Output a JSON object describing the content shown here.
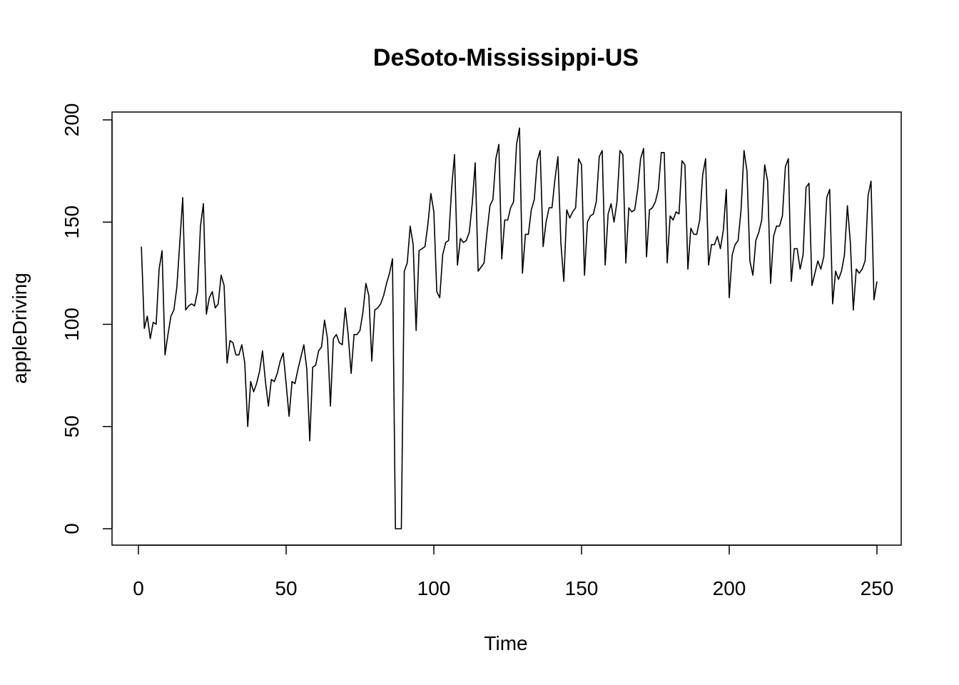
{
  "chart_data": {
    "type": "line",
    "title": "DeSoto-Mississippi-US",
    "xlabel": "Time",
    "ylabel": "appleDriving",
    "xlim": [
      1,
      248
    ],
    "ylim": [
      0,
      196
    ],
    "x_ticks": [
      0,
      50,
      100,
      150,
      200,
      250
    ],
    "x_tick_labels": [
      "0",
      "50",
      "100",
      "150",
      "200",
      "250"
    ],
    "y_ticks": [
      0,
      50,
      100,
      150,
      200
    ],
    "y_tick_labels": [
      "0",
      "50",
      "100",
      "150",
      "200"
    ],
    "grid": false,
    "legend": "none",
    "color": "#000000",
    "series": [
      {
        "x_start": 1,
        "values": [
          138,
          98,
          104,
          93,
          101,
          100,
          127,
          136,
          85,
          95,
          104,
          107,
          118,
          140,
          162,
          107,
          109,
          110,
          109,
          116,
          148,
          159,
          105,
          113,
          116,
          108,
          110,
          124,
          119,
          81,
          92,
          91,
          85,
          85,
          90,
          81,
          50,
          72,
          67,
          71,
          77,
          87,
          72,
          60,
          73,
          72,
          76,
          82,
          86,
          71,
          55,
          72,
          71,
          78,
          84,
          90,
          78,
          43,
          79,
          80,
          87,
          89,
          102,
          93,
          60,
          93,
          95,
          91,
          90,
          108,
          95,
          76,
          95,
          95,
          97,
          106,
          120,
          114,
          82,
          107,
          108,
          110,
          114,
          120,
          125,
          132,
          0,
          0,
          0,
          126,
          130,
          148,
          139,
          97,
          136,
          137,
          138,
          149,
          164,
          155,
          116,
          113,
          134,
          140,
          141,
          166,
          183,
          129,
          142,
          140,
          141,
          145,
          159,
          179,
          126,
          128,
          130,
          145,
          158,
          161,
          181,
          188,
          132,
          151,
          151,
          157,
          160,
          188,
          196,
          125,
          144,
          144,
          156,
          161,
          180,
          185,
          138,
          150,
          157,
          157,
          171,
          182,
          140,
          121,
          156,
          152,
          155,
          157,
          181,
          178,
          124,
          150,
          153,
          154,
          160,
          182,
          185,
          129,
          154,
          159,
          150,
          160,
          185,
          183,
          130,
          157,
          155,
          156,
          166,
          181,
          186,
          133,
          156,
          157,
          160,
          166,
          184,
          184,
          130,
          153,
          151,
          155,
          154,
          180,
          178,
          127,
          147,
          144,
          144,
          151,
          173,
          181,
          129,
          139,
          139,
          143,
          137,
          146,
          166,
          113,
          134,
          139,
          141,
          156,
          185,
          175,
          131,
          124,
          141,
          145,
          151,
          178,
          170,
          120,
          143,
          148,
          148,
          153,
          177,
          181,
          121,
          137,
          137,
          127,
          134,
          167,
          169,
          119,
          125,
          131,
          127,
          133,
          162,
          166,
          110,
          126,
          122,
          126,
          134,
          158,
          140,
          107,
          127,
          125,
          127,
          131,
          163,
          170,
          112,
          121
        ]
      }
    ]
  }
}
